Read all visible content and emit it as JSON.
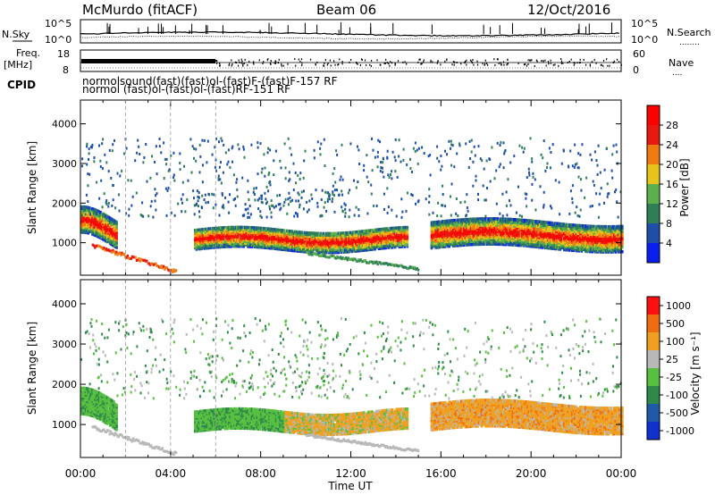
{
  "header": {
    "station": "McMurdo (fitACF)",
    "beam": "Beam 06",
    "date": "12/Oct/2016"
  },
  "top_panel": {
    "left_label_sky": "N.Sky",
    "left_ticks": [
      "10^5",
      "10^0"
    ],
    "right_ticks": [
      "10^5",
      "10^0"
    ],
    "right_label_search": "N.Search",
    "right_label_search_marker": "........",
    "freq_label_line1": "Freq.",
    "freq_label_line2": "[MHz]",
    "freq_ticks": [
      "18",
      "8"
    ],
    "nave_ticks": [
      "60",
      "0"
    ],
    "nave_label": "Nave",
    "nave_marker": "....",
    "cpid_label": "CPID",
    "cpid_row1": "normolsound(fast)(fast)ol-(fast)F-(fast)F-157 RF",
    "cpid_row2": "normol (fast)ol-(fast)ol-(fast)RF-151 RF"
  },
  "chart_data": [
    {
      "type": "heatmap",
      "title": "",
      "xlabel": "",
      "ylabel": "Slant Range [km]",
      "x_ticks": [
        "00:00",
        "04:00",
        "08:00",
        "12:00",
        "16:00",
        "20:00",
        "00:00"
      ],
      "y_ticks": [
        1000,
        2000,
        3000,
        4000
      ],
      "xlim": [
        0,
        24
      ],
      "ylim": [
        180,
        4600
      ],
      "colorbar": {
        "label": "Power [dB]",
        "ticks": [
          4,
          8,
          12,
          16,
          20,
          24,
          28
        ],
        "colors": [
          "#0a1eee",
          "#1e4fa8",
          "#2e7f58",
          "#5cb04c",
          "#e6c41a",
          "#f07a10",
          "#e81810",
          "#ff0000"
        ]
      },
      "mode": "power"
    },
    {
      "type": "heatmap",
      "title": "",
      "xlabel": "Time UT",
      "ylabel": "Slant Range [km]",
      "x_ticks": [
        "00:00",
        "04:00",
        "08:00",
        "12:00",
        "16:00",
        "20:00",
        "00:00"
      ],
      "y_ticks": [
        1000,
        2000,
        3000,
        4000
      ],
      "xlim": [
        0,
        24
      ],
      "ylim": [
        180,
        4600
      ],
      "colorbar": {
        "label": "Velocity [m s⁻¹]",
        "ticks": [
          "1000",
          "500",
          "100",
          "25",
          "-25",
          "-100",
          "-500",
          "-1000"
        ],
        "colors": [
          "#1030d0",
          "#1e5aa6",
          "#2f8a4a",
          "#58c040",
          "#b8b8b8",
          "#f0a020",
          "#f06c10",
          "#ff1010"
        ]
      },
      "mode": "velocity"
    }
  ]
}
